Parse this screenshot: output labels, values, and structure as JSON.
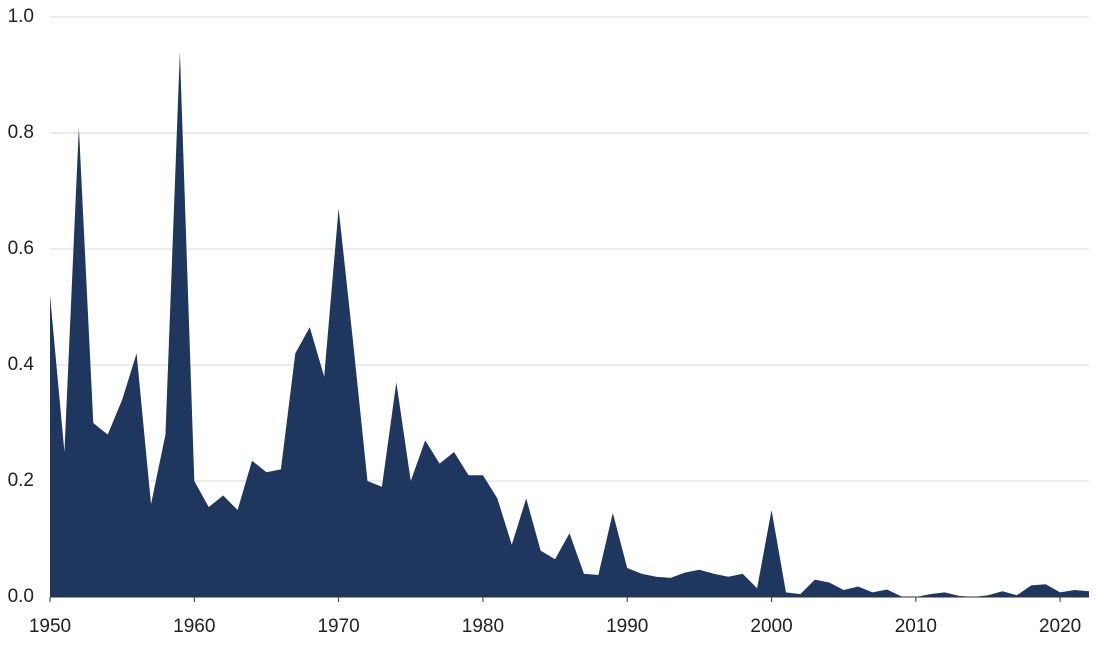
{
  "chart_data": {
    "type": "area",
    "color": "#1f365e",
    "x": [
      1950,
      1951,
      1952,
      1953,
      1954,
      1955,
      1956,
      1957,
      1958,
      1959,
      1960,
      1961,
      1962,
      1963,
      1964,
      1965,
      1966,
      1967,
      1968,
      1969,
      1970,
      1971,
      1972,
      1973,
      1974,
      1975,
      1976,
      1977,
      1978,
      1979,
      1980,
      1981,
      1982,
      1983,
      1984,
      1985,
      1986,
      1987,
      1988,
      1989,
      1990,
      1991,
      1992,
      1993,
      1994,
      1995,
      1996,
      1997,
      1998,
      1999,
      2000,
      2001,
      2002,
      2003,
      2004,
      2005,
      2006,
      2007,
      2008,
      2009,
      2010,
      2011,
      2012,
      2013,
      2014,
      2015,
      2016,
      2017,
      2018,
      2019,
      2020,
      2021,
      2022
    ],
    "values": [
      0.52,
      0.25,
      0.81,
      0.3,
      0.28,
      0.34,
      0.42,
      0.16,
      0.28,
      0.94,
      0.2,
      0.155,
      0.175,
      0.15,
      0.235,
      0.215,
      0.22,
      0.42,
      0.465,
      0.38,
      0.67,
      0.44,
      0.2,
      0.19,
      0.37,
      0.2,
      0.27,
      0.23,
      0.25,
      0.21,
      0.21,
      0.17,
      0.09,
      0.17,
      0.08,
      0.065,
      0.11,
      0.04,
      0.038,
      0.145,
      0.05,
      0.04,
      0.035,
      0.033,
      0.042,
      0.047,
      0.04,
      0.035,
      0.04,
      0.015,
      0.15,
      0.008,
      0.005,
      0.03,
      0.025,
      0.012,
      0.018,
      0.008,
      0.013,
      0.001,
      0.0,
      0.005,
      0.008,
      0.002,
      0.0,
      0.003,
      0.01,
      0.003,
      0.02,
      0.022,
      0.008,
      0.012,
      0.01
    ],
    "xlim": [
      1950,
      2022
    ],
    "xticks": [
      1950,
      1960,
      1970,
      1980,
      1990,
      2000,
      2010,
      2020
    ],
    "ylim": [
      0,
      1
    ],
    "yticks": [
      {
        "value": 0,
        "label": "0.0"
      },
      0.2,
      0.4,
      0.6,
      0.8,
      {
        "value": 1,
        "label": "1.0"
      }
    ],
    "grid": true
  }
}
